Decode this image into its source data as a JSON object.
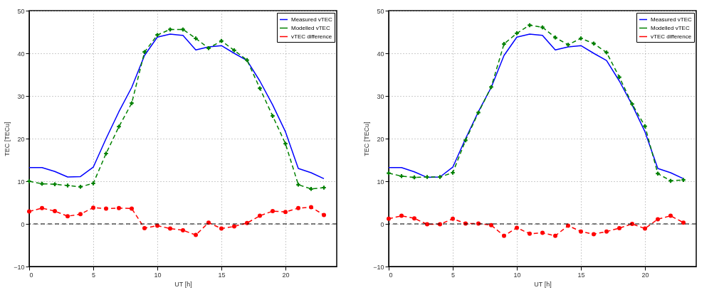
{
  "chart_data": [
    {
      "type": "line",
      "xlabel": "UT [h]",
      "ylabel": "TEC [TECu]",
      "xlim": [
        0,
        24
      ],
      "xticks": [
        0,
        5,
        10,
        15,
        20
      ],
      "ylim": [
        -10,
        50
      ],
      "yticks": [
        -10,
        0,
        10,
        20,
        30,
        40,
        50
      ],
      "grid": true,
      "legend": "top right",
      "x": [
        0,
        1,
        2,
        3,
        4,
        5,
        6,
        7,
        8,
        9,
        10,
        11,
        12,
        13,
        14,
        15,
        16,
        17,
        18,
        19,
        20,
        21,
        22,
        23
      ],
      "ref_lines": [
        {
          "axis": "y",
          "value": 0,
          "color": "#000000",
          "line_style": "dashed"
        }
      ],
      "series": [
        {
          "name": "Measured vTEC",
          "color": "#0000ff",
          "marker": "none",
          "line_style": "solid",
          "values": [
            13.2,
            13.2,
            12.3,
            11,
            11.1,
            13.3,
            20,
            26.3,
            32,
            39.5,
            43.8,
            44.5,
            44.2,
            40.8,
            41.5,
            41.8,
            40,
            38.3,
            33.5,
            27.9,
            21.6,
            13,
            12,
            10.6
          ]
        },
        {
          "name": "Modelled vTEC",
          "color": "#008000",
          "marker": "cross",
          "line_style": "dashed",
          "values": [
            10,
            9.4,
            9.3,
            9,
            8.7,
            9.5,
            16.5,
            22.8,
            28.3,
            40.3,
            44.3,
            45.6,
            45.6,
            43.5,
            41.2,
            42.9,
            40.7,
            38.4,
            31.8,
            25.3,
            18.8,
            9.2,
            8.2,
            8.5
          ]
        },
        {
          "name": "vTEC difference",
          "color": "#ff0000",
          "marker": "circle",
          "line_style": "dashed",
          "values": [
            2.9,
            3.7,
            3,
            1.8,
            2.3,
            3.8,
            3.6,
            3.7,
            3.6,
            -1,
            -0.4,
            -1.1,
            -1.5,
            -2.6,
            0.3,
            -1.1,
            -0.6,
            0.2,
            1.9,
            3,
            2.8,
            3.7,
            3.9,
            2.1
          ]
        }
      ]
    },
    {
      "type": "line",
      "xlabel": "UT [h]",
      "ylabel": "TEC [TECu]",
      "xlim": [
        0,
        24
      ],
      "xticks": [
        0,
        5,
        10,
        15,
        20
      ],
      "ylim": [
        -10,
        50
      ],
      "yticks": [
        -10,
        0,
        10,
        20,
        30,
        40,
        50
      ],
      "grid": true,
      "legend": "top right",
      "x": [
        0,
        1,
        2,
        3,
        4,
        5,
        6,
        7,
        8,
        9,
        10,
        11,
        12,
        13,
        14,
        15,
        16,
        17,
        18,
        19,
        20,
        21,
        22,
        23
      ],
      "ref_lines": [
        {
          "axis": "y",
          "value": 0,
          "color": "#000000",
          "line_style": "dashed"
        }
      ],
      "series": [
        {
          "name": "Measured vTEC",
          "color": "#0000ff",
          "marker": "none",
          "line_style": "solid",
          "values": [
            13.2,
            13.2,
            12.2,
            10.9,
            11,
            13.3,
            20,
            26.3,
            32,
            39.5,
            43.8,
            44.5,
            44.2,
            40.8,
            41.5,
            41.8,
            40,
            38.3,
            33.5,
            27.9,
            21.6,
            13,
            12,
            10.6
          ]
        },
        {
          "name": "Modelled vTEC",
          "color": "#008000",
          "marker": "cross",
          "line_style": "dashed",
          "values": [
            11.9,
            11.2,
            10.9,
            11,
            11,
            12,
            19.6,
            26.1,
            32.1,
            42.2,
            44.7,
            46.6,
            46.1,
            43.7,
            42,
            43.5,
            42.3,
            40.2,
            34.4,
            28.1,
            22.9,
            11.8,
            10.1,
            10.3
          ]
        },
        {
          "name": "vTEC difference",
          "color": "#ff0000",
          "marker": "circle",
          "line_style": "dashed",
          "values": [
            1.2,
            1.9,
            1.3,
            -0.1,
            -0.1,
            1.2,
            0.1,
            0.1,
            -0.3,
            -2.8,
            -0.9,
            -2.3,
            -2.1,
            -2.8,
            -0.4,
            -1.8,
            -2.4,
            -1.8,
            -1,
            0,
            -1.1,
            1.1,
            1.9,
            0.3
          ]
        }
      ]
    }
  ]
}
